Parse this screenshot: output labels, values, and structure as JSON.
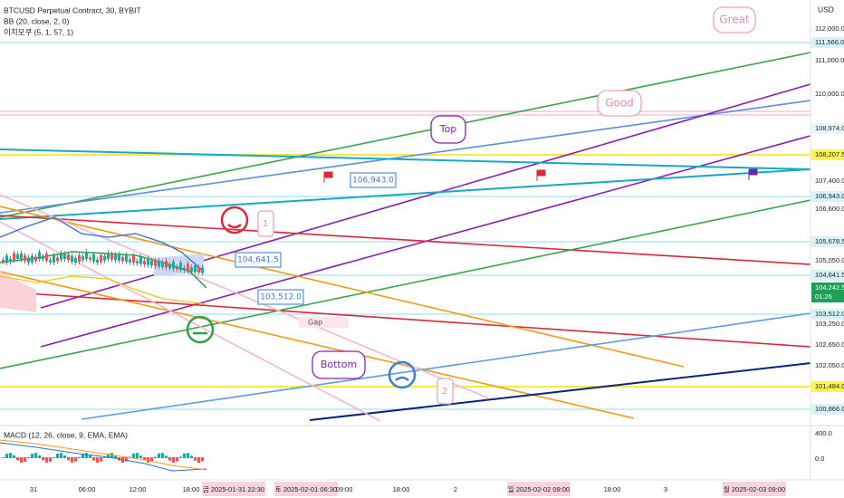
{
  "header": {
    "symbol": "BTCUSD Perpetual Contract, 30, BYBIT",
    "bb": "BB (20, close, 2, 0)",
    "ichimoku": "이치모쿠 (5, 1, 57, 1)"
  },
  "price_axis": {
    "currency": "USD",
    "labels": [
      "112,000.0",
      "111,566.0",
      "111,000.0",
      "110,000.0",
      "108,974.0",
      "108,207.5",
      "107,400.0",
      "106,943.0",
      "106,600.0",
      "105,678.5",
      "105,050.0",
      "104,641.5",
      "104,242.5",
      "01:26",
      "103,512.0",
      "103,250.0",
      "102,650.0",
      "102,050.0",
      "101,484.0",
      "100,866.0"
    ]
  },
  "annotations": {
    "great": "Great",
    "good": "Good",
    "top": "Top",
    "callout_1": "106,943.0",
    "callout_2": "104,641.5",
    "callout_3": "103,512.0",
    "gap": "Gap",
    "bottom": "Bottom",
    "wave_1": "1",
    "wave_2": "2"
  },
  "macd": {
    "title": "MACD (12, 26, close, 9, EMA, EMA)",
    "labels": [
      "400.0",
      "0.0"
    ]
  },
  "time_axis": {
    "labels": [
      "31",
      "06:00",
      "12:00",
      "18:00",
      "금 2025-01-31  22:30",
      "토 2025-02-01  06:30",
      "09:00",
      "18:00",
      "2",
      "일 2025-02-02  09:00",
      "18:00",
      "3",
      "월 2025-02-03  09:00"
    ]
  }
}
